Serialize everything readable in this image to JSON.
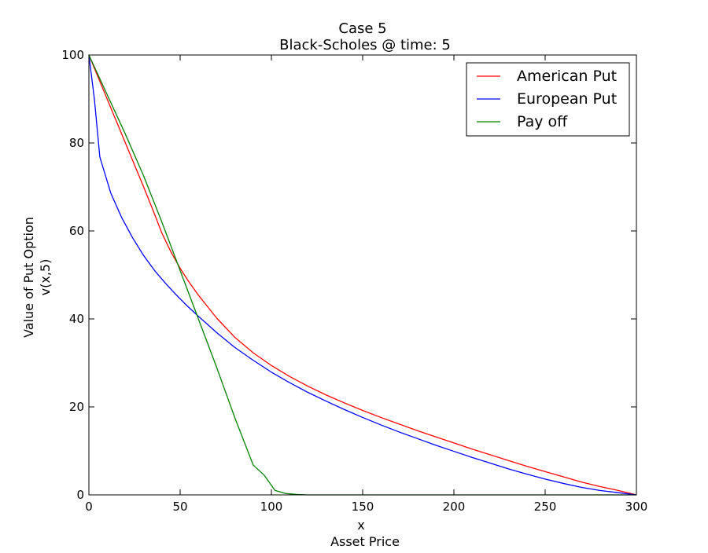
{
  "chart_data": {
    "type": "line",
    "title": "Case 5",
    "subtitle": "Black-Scholes @ time: 5",
    "xlabel": "x",
    "xlabel_sub": "Asset Price",
    "ylabel": "Value of Put Option",
    "ylabel_sub": "v(x,5)",
    "xlim": [
      0,
      300
    ],
    "ylim": [
      0,
      100
    ],
    "xticks": [
      0,
      50,
      100,
      150,
      200,
      250,
      300
    ],
    "yticks": [
      0,
      20,
      40,
      60,
      80,
      100
    ],
    "grid": false,
    "legend_position": "top-right",
    "series": [
      {
        "name": "American Put",
        "color": "#ff0000",
        "x": [
          0,
          6,
          12,
          18,
          24,
          30,
          36,
          40,
          45,
          50,
          55,
          60,
          70,
          80,
          90,
          100,
          110,
          120,
          130,
          140,
          150,
          160,
          170,
          180,
          190,
          200,
          210,
          220,
          230,
          240,
          250,
          260,
          270,
          280,
          290,
          300
        ],
        "y": [
          100,
          94,
          88,
          82,
          76,
          70,
          63.8,
          59.5,
          55.2,
          51.5,
          48.3,
          45.4,
          40.2,
          35.8,
          32.3,
          29.4,
          26.9,
          24.7,
          22.7,
          20.9,
          19.2,
          17.6,
          16.1,
          14.6,
          13.2,
          11.8,
          10.4,
          9.1,
          7.8,
          6.5,
          5.3,
          4.1,
          2.9,
          1.9,
          1.0,
          0
        ]
      },
      {
        "name": "European Put",
        "color": "#0000ff",
        "x": [
          0,
          3,
          6,
          12,
          18,
          24,
          30,
          36,
          42,
          48,
          54,
          60,
          70,
          80,
          90,
          100,
          110,
          120,
          130,
          140,
          150,
          160,
          170,
          180,
          190,
          200,
          210,
          220,
          230,
          240,
          250,
          260,
          270,
          280,
          290,
          300
        ],
        "y": [
          100,
          90,
          76.8,
          68.6,
          63.0,
          58.4,
          54.4,
          51.0,
          48.1,
          45.4,
          42.9,
          40.6,
          36.9,
          33.5,
          30.6,
          27.9,
          25.5,
          23.3,
          21.3,
          19.4,
          17.6,
          15.9,
          14.3,
          12.8,
          11.3,
          9.9,
          8.5,
          7.2,
          5.9,
          4.7,
          3.6,
          2.6,
          1.7,
          1.0,
          0.5,
          0
        ]
      },
      {
        "name": "Pay off",
        "color": "#008000",
        "x": [
          0,
          10,
          20,
          30,
          40,
          50,
          60,
          70,
          80,
          90,
          96,
          102,
          108,
          114,
          120,
          150,
          200,
          250,
          300
        ],
        "y": [
          100,
          91,
          82,
          72.5,
          62,
          51,
          40,
          29,
          17.5,
          6.8,
          4.5,
          1.0,
          0.3,
          0.1,
          0,
          0,
          0,
          0,
          0
        ]
      }
    ]
  }
}
